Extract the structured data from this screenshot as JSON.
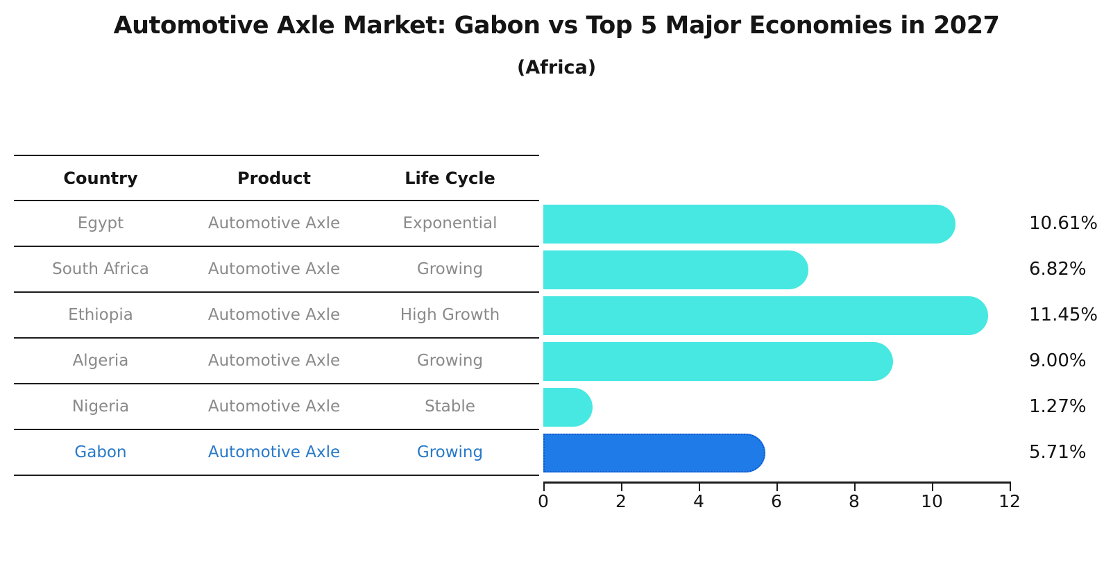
{
  "header": {
    "title": "Automotive Axle Market: Gabon vs Top 5 Major Economies in 2027",
    "subtitle": "(Africa)"
  },
  "table": {
    "columns": [
      "Country",
      "Product",
      "Life Cycle"
    ],
    "rows": [
      {
        "country": "Egypt",
        "product": "Automotive Axle",
        "life_cycle": "Exponential",
        "highlight": false
      },
      {
        "country": "South Africa",
        "product": "Automotive Axle",
        "life_cycle": "Growing",
        "highlight": false
      },
      {
        "country": "Ethiopia",
        "product": "Automotive Axle",
        "life_cycle": "High Growth",
        "highlight": false
      },
      {
        "country": "Algeria",
        "product": "Automotive Axle",
        "life_cycle": "Growing",
        "highlight": false
      },
      {
        "country": "Nigeria",
        "product": "Automotive Axle",
        "life_cycle": "Stable",
        "highlight": false
      },
      {
        "country": "Gabon",
        "product": "Automotive Axle",
        "life_cycle": "Growing",
        "highlight": true
      }
    ]
  },
  "chart_data": {
    "type": "bar",
    "orientation": "horizontal",
    "title": "Automotive Axle Market: Gabon vs Top 5 Major Economies in 2027",
    "subtitle": "(Africa)",
    "categories": [
      "Egypt",
      "South Africa",
      "Ethiopia",
      "Algeria",
      "Nigeria",
      "Gabon"
    ],
    "values": [
      10.61,
      6.82,
      11.45,
      9.0,
      1.27,
      5.71
    ],
    "value_labels": [
      "10.61%",
      "6.82%",
      "11.45%",
      "9.00%",
      "1.27%",
      "5.71%"
    ],
    "xlabel": "",
    "ylabel": "",
    "xlim": [
      0,
      12
    ],
    "x_ticks": [
      "0",
      "2",
      "4",
      "6",
      "8",
      "10",
      "12"
    ],
    "grid": false,
    "legend": false,
    "bar_color": "#46e8e1",
    "highlight_bar_color": "#1e7be8",
    "highlight_border_color": "#1157cd",
    "highlight_index": 5,
    "highlight_text_color": "#2879c8"
  }
}
